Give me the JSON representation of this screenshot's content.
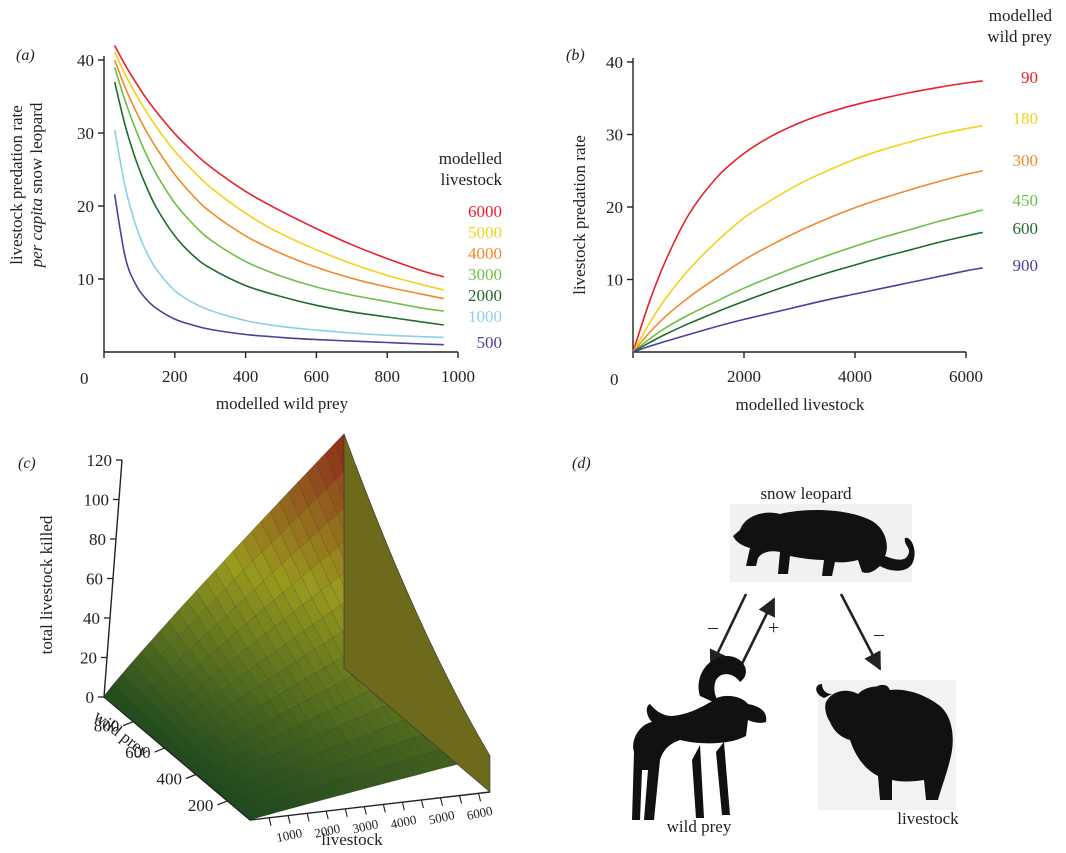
{
  "chart_data": [
    {
      "panel": "(a)",
      "type": "line",
      "xlabel": "modelled wild prey",
      "ylabel_line1": "livestock predation rate",
      "ylabel_italic": "per capita",
      "ylabel_rest": " snow leopard",
      "xlim": [
        0,
        1000
      ],
      "ylim": [
        0,
        40
      ],
      "xticks": [
        0,
        200,
        400,
        600,
        800,
        1000
      ],
      "yticks": [
        10,
        20,
        30,
        40
      ],
      "zero_label": "0",
      "legend_title": [
        "modelled",
        "livestock"
      ],
      "x": [
        30,
        60,
        90,
        120,
        150,
        200,
        250,
        300,
        400,
        500,
        600,
        700,
        800,
        900,
        960
      ],
      "series": [
        {
          "name": "6000",
          "color": "#e8202a",
          "values": [
            42.0,
            39.3,
            36.9,
            34.7,
            32.8,
            29.9,
            27.5,
            25.4,
            22.0,
            19.3,
            16.9,
            14.7,
            12.8,
            11.1,
            10.3
          ]
        },
        {
          "name": "5000",
          "color": "#f2d21a",
          "values": [
            41.1,
            38.0,
            35.3,
            32.9,
            30.7,
            27.5,
            24.9,
            22.6,
            19.0,
            16.2,
            14.0,
            12.1,
            10.5,
            9.2,
            8.5
          ]
        },
        {
          "name": "4000",
          "color": "#f08a2a",
          "values": [
            40.0,
            36.2,
            33.0,
            30.2,
            27.8,
            24.3,
            21.5,
            19.2,
            15.9,
            13.5,
            11.6,
            10.1,
            8.9,
            7.9,
            7.3
          ]
        },
        {
          "name": "3000",
          "color": "#6cbf44",
          "values": [
            39.0,
            34.4,
            30.4,
            27.0,
            24.2,
            20.4,
            17.6,
            15.4,
            12.4,
            10.4,
            8.9,
            7.8,
            6.9,
            6.0,
            5.6
          ]
        },
        {
          "name": "2000",
          "color": "#1e6b2c",
          "values": [
            37.0,
            31.0,
            26.3,
            22.6,
            19.6,
            15.9,
            13.3,
            11.5,
            9.1,
            7.6,
            6.4,
            5.5,
            4.8,
            4.1,
            3.7
          ]
        },
        {
          "name": "1000",
          "color": "#8ccfe8",
          "values": [
            30.4,
            22.6,
            17.3,
            13.7,
            11.2,
            8.4,
            6.8,
            5.7,
            4.3,
            3.5,
            3.0,
            2.6,
            2.3,
            2.1,
            2.0
          ]
        },
        {
          "name": "500",
          "color": "#4a3f9a",
          "values": [
            21.6,
            13.0,
            9.2,
            7.2,
            5.9,
            4.5,
            3.7,
            3.1,
            2.4,
            2.0,
            1.7,
            1.5,
            1.3,
            1.1,
            1.0
          ]
        }
      ]
    },
    {
      "panel": "(b)",
      "type": "line",
      "xlabel": "modelled livestock",
      "ylabel": "livestock predation rate",
      "xlim": [
        0,
        6000
      ],
      "ylim": [
        0,
        40
      ],
      "xticks": [
        0,
        2000,
        4000,
        6000
      ],
      "yticks": [
        10,
        20,
        30,
        40
      ],
      "zero_label": "0",
      "legend_title": [
        "modelled",
        "wild prey"
      ],
      "x": [
        0,
        300,
        600,
        1000,
        1500,
        2000,
        2500,
        3000,
        3500,
        4000,
        4500,
        5000,
        5500,
        6000,
        6300
      ],
      "series": [
        {
          "name": "90",
          "color": "#e8202a",
          "values": [
            0,
            7.0,
            12.8,
            18.9,
            24.0,
            27.4,
            29.8,
            31.6,
            33.0,
            34.1,
            35.0,
            35.8,
            36.5,
            37.1,
            37.4
          ]
        },
        {
          "name": "180",
          "color": "#f2d21a",
          "values": [
            0,
            4.0,
            7.5,
            11.3,
            15.2,
            18.5,
            21.0,
            23.2,
            25.0,
            26.6,
            27.9,
            29.0,
            30.0,
            30.8,
            31.2
          ]
        },
        {
          "name": "300",
          "color": "#f08a2a",
          "values": [
            0,
            2.7,
            5.0,
            7.5,
            10.2,
            12.7,
            14.8,
            16.7,
            18.4,
            19.9,
            21.2,
            22.4,
            23.5,
            24.5,
            25.0
          ]
        },
        {
          "name": "450",
          "color": "#6cbf44",
          "values": [
            0,
            1.8,
            3.4,
            5.1,
            7.0,
            8.8,
            10.4,
            11.9,
            13.3,
            14.6,
            15.8,
            16.9,
            18.0,
            19.0,
            19.6
          ]
        },
        {
          "name": "600",
          "color": "#1e6b2c",
          "values": [
            0,
            1.3,
            2.5,
            3.9,
            5.5,
            7.0,
            8.4,
            9.7,
            10.9,
            12.0,
            13.1,
            14.1,
            15.1,
            16.0,
            16.5
          ]
        },
        {
          "name": "900",
          "color": "#4a3f9a",
          "values": [
            0,
            0.8,
            1.5,
            2.4,
            3.5,
            4.5,
            5.4,
            6.3,
            7.2,
            8.0,
            8.8,
            9.6,
            10.4,
            11.2,
            11.6
          ]
        }
      ]
    },
    {
      "panel": "(c)",
      "type": "surface",
      "zlabel": "total livestock killed",
      "xlabel": "livestock",
      "ylabel": "wild prey",
      "zticks": [
        "0",
        "20",
        "40",
        "60",
        "80",
        "100",
        "120"
      ],
      "livestock_ticks": [
        "1000",
        "2000",
        "3000",
        "4000",
        "5000",
        "6000"
      ],
      "wildprey_ticks": [
        "800",
        "600",
        "400",
        "200"
      ],
      "zlim": [
        0,
        120
      ],
      "livestock_range": [
        0,
        6300
      ],
      "wildprey_range": [
        50,
        900
      ],
      "color_low": "#1f4a1e",
      "color_mid": "#9a9a1e",
      "color_high": "#8c1c1c"
    }
  ],
  "diagram": {
    "panel": "(d)",
    "top_label": "snow leopard",
    "left_label": "wild prey",
    "right_label": "livestock",
    "sign_leopard_to_prey": "–",
    "sign_prey_to_leopard": "+",
    "sign_leopard_to_livestock": "–"
  }
}
